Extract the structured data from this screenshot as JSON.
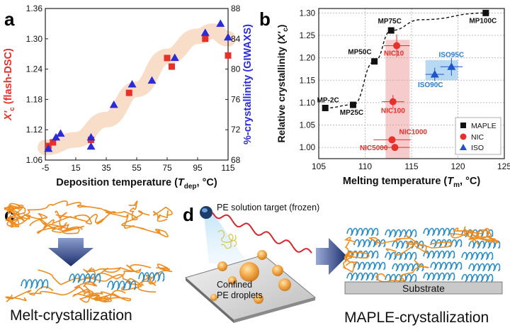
{
  "panel_labels": {
    "a": "a",
    "b": "b",
    "c": "c",
    "d": "d"
  },
  "chart_data": [
    {
      "type": "scatter",
      "panel": "a",
      "xlabel": "Deposition temperature (T_dep, °C)",
      "xlabel_parts": {
        "main": "Deposition temperature (",
        "var": "T",
        "sub": "dep",
        "tail": ", °C)"
      },
      "ylabel_left": "X'c (flash-DSC)",
      "ylabel_left_parts": {
        "var": "X",
        "prime": "'",
        "sub": "c",
        "tail": " (flash-DSC)"
      },
      "ylabel_right": "%-crystallinity (GIWAXS)",
      "xlim": [
        -5,
        115
      ],
      "ylim_left": [
        1.06,
        1.36
      ],
      "ylim_right": [
        68,
        88
      ],
      "x_ticks": [
        -5,
        15,
        35,
        55,
        75,
        95,
        115
      ],
      "y_left_ticks": [
        "1.06",
        "1.12",
        "1.18",
        "1.24",
        "1.30",
        "1.36"
      ],
      "y_right_ticks": [
        "68",
        "72",
        "76",
        "80",
        "84",
        "88"
      ],
      "colors": {
        "left": "#e8302a",
        "right": "#2b2bd9",
        "trend": "#f7d9c2"
      },
      "series": [
        {
          "marker": "square",
          "axis": "left",
          "points": [
            [
              -3,
              1.088
            ],
            [
              0,
              1.095
            ],
            [
              25,
              1.1
            ],
            [
              50,
              1.193
            ],
            [
              75,
              1.262
            ],
            [
              78,
              1.245
            ],
            [
              100,
              1.3
            ],
            [
              115,
              1.267
            ]
          ]
        },
        {
          "marker": "triangle",
          "axis": "right",
          "points": [
            [
              -3,
              69.5
            ],
            [
              2,
              71.0
            ],
            [
              5,
              71.5
            ],
            [
              25,
              71.0
            ],
            [
              25,
              69.8
            ],
            [
              40,
              75.3
            ],
            [
              52,
              78.0
            ],
            [
              65,
              78.5
            ],
            [
              80,
              81.5
            ],
            [
              100,
              84.8
            ],
            [
              110,
              86.0
            ],
            [
              115,
              84.2
            ]
          ]
        }
      ],
      "trend_curve": [
        [
          -5,
          1.085
        ],
        [
          15,
          1.1
        ],
        [
          35,
          1.14
        ],
        [
          55,
          1.2
        ],
        [
          75,
          1.265
        ],
        [
          95,
          1.305
        ],
        [
          105,
          1.315
        ],
        [
          115,
          1.3
        ]
      ]
    },
    {
      "type": "scatter",
      "panel": "b",
      "xlabel": "Melting temperature (T_m, °C)",
      "xlabel_parts": {
        "main": "Melting temperature (",
        "var": "T",
        "sub": "m",
        "tail": ", °C)"
      },
      "ylabel": "Relative crystallinity (X'c)",
      "ylabel_parts": {
        "main": "Relative crystallinity (",
        "var": "X",
        "prime": "'",
        "sub": "c",
        "tail": ")"
      },
      "xlim": [
        105,
        125
      ],
      "ylim": [
        0.975,
        1.31
      ],
      "x_ticks": [
        105,
        110,
        115,
        120,
        125
      ],
      "y_ticks": [
        "1.00",
        "1.05",
        "1.10",
        "1.15",
        "1.20",
        "1.25",
        "1.30"
      ],
      "grid": true,
      "legend": [
        "MAPLE",
        "NIC",
        "ISO"
      ],
      "legend_position": "bottom-right",
      "maple_points": [
        {
          "x": 105.7,
          "y": 1.088,
          "label": "MP-2C"
        },
        {
          "x": 108.7,
          "y": 1.095,
          "label": "MP25C"
        },
        {
          "x": 111.0,
          "y": 1.192,
          "label": "MP50C"
        },
        {
          "x": 112.8,
          "y": 1.261,
          "label": "MP75C"
        },
        {
          "x": 123.0,
          "y": 1.3,
          "label": "MP100C"
        }
      ],
      "nic_points": [
        {
          "x": 113.4,
          "y": 1.227,
          "label": "NIC10"
        },
        {
          "x": 113.0,
          "y": 1.102,
          "label": "NIC100"
        },
        {
          "x": 112.9,
          "y": 1.017,
          "label": "NIC1000"
        },
        {
          "x": 113.2,
          "y": 1.0,
          "label": "NIC5000"
        }
      ],
      "iso_points": [
        {
          "x": 119.3,
          "y": 1.18,
          "label": "ISO95C"
        },
        {
          "x": 117.5,
          "y": 1.163,
          "label": "ISO90C"
        }
      ],
      "colors": {
        "maple": "#111111",
        "nic": "#e8302a",
        "iso": "#1f55c8",
        "nic_label": "#e8302a",
        "iso_label": "#2a7ad0"
      }
    }
  ],
  "panel_c": {
    "caption": "Melt-crystallization"
  },
  "panel_d": {
    "target_label": "PE solution target (frozen)",
    "droplets_label_1": "Confined",
    "droplets_label_2": "PE droplets",
    "substrate_label": "Substrate",
    "caption": "MAPLE-crystallization"
  }
}
